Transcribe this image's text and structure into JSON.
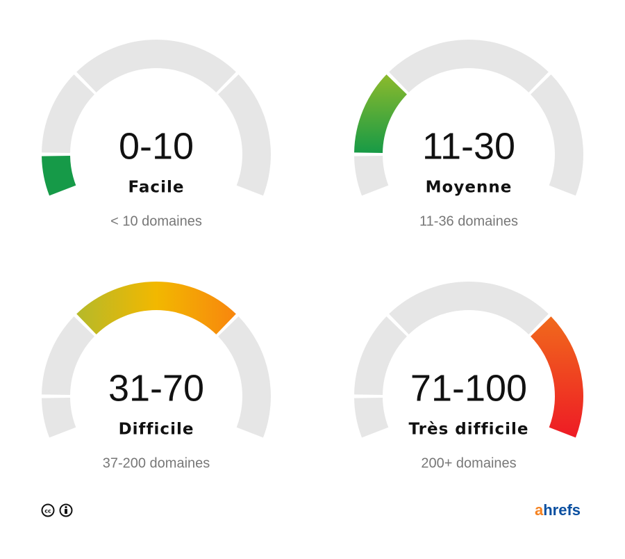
{
  "gauges": [
    {
      "range": "0-10",
      "label": "Facile",
      "domains": "< 10 domaines"
    },
    {
      "range": "11-30",
      "label": "Moyenne",
      "domains": "11-36 domaines"
    },
    {
      "range": "31-70",
      "label": "Difficile",
      "domains": "37-200 domaines"
    },
    {
      "range": "71-100",
      "label": "Très difficile",
      "domains": "200+ domaines"
    }
  ],
  "footer": {
    "logo": [
      "a",
      "hrefs"
    ]
  }
}
